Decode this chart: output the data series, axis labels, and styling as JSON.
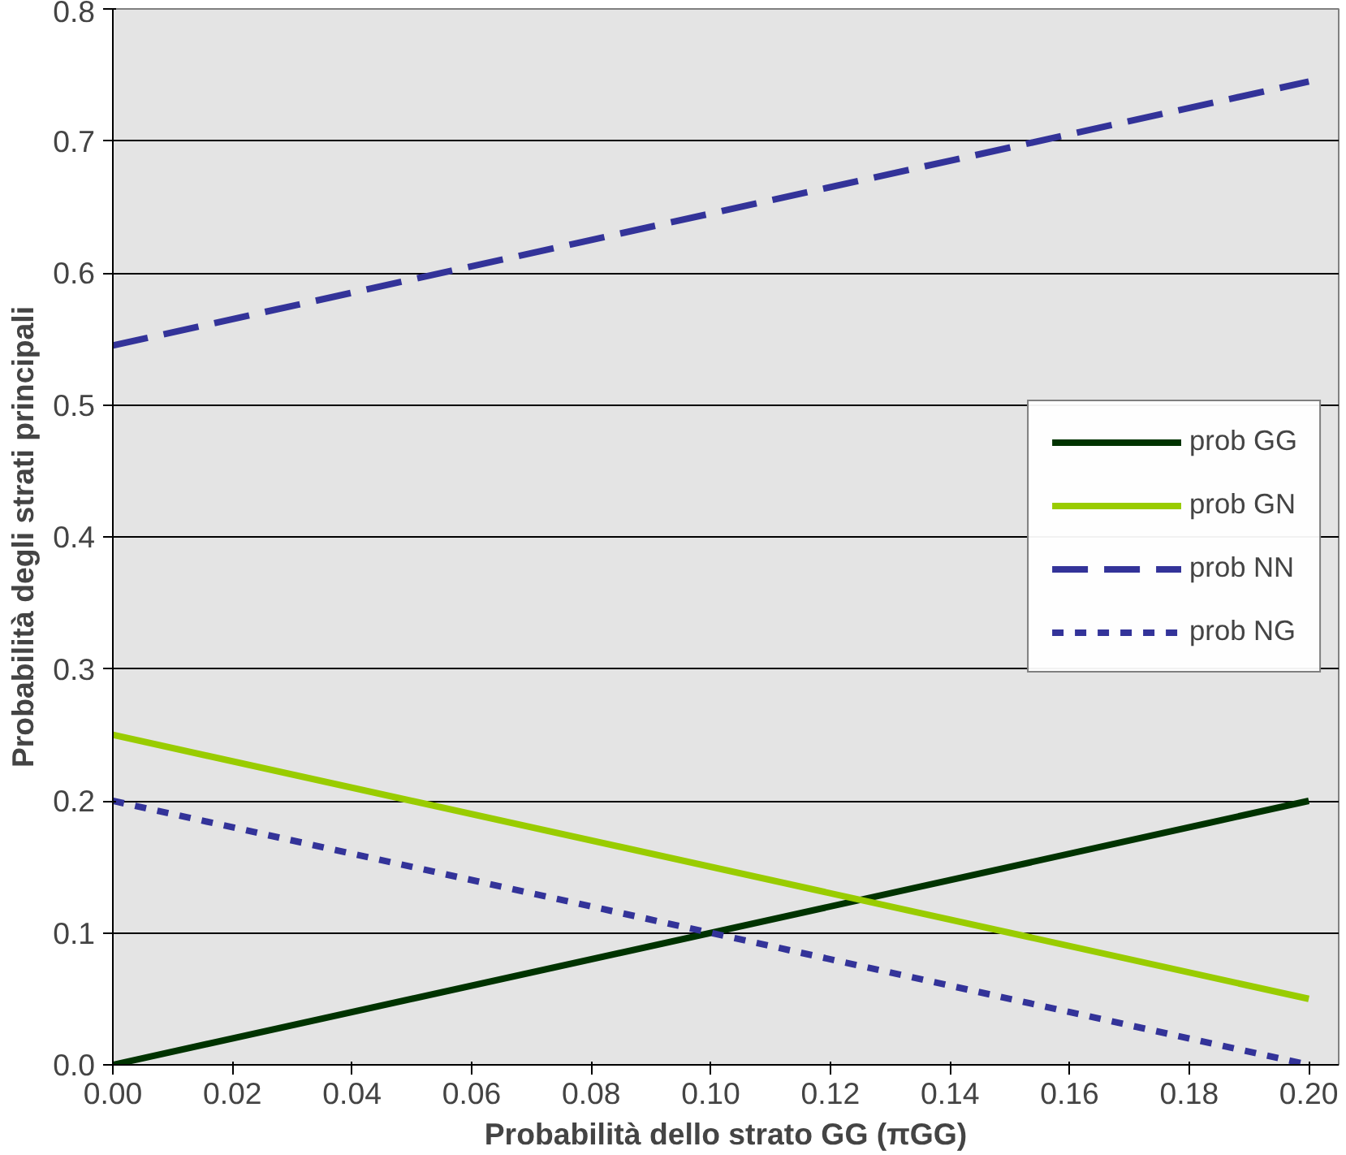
{
  "chart_data": {
    "type": "line",
    "xlabel": "Probabilità dello strato GG (πGG)",
    "ylabel": "Probabilità degli strati principali",
    "x": [
      0.0,
      0.2
    ],
    "series": [
      {
        "name": "prob GG",
        "color": "#003300",
        "values": [
          0.0,
          0.2
        ],
        "line_style": "solid"
      },
      {
        "name": "prob GN",
        "color": "#99cc00",
        "values": [
          0.25,
          0.05
        ],
        "line_style": "solid"
      },
      {
        "name": "prob NN",
        "color": "#333399",
        "values": [
          0.545,
          0.745
        ],
        "line_style": "dashed"
      },
      {
        "name": "prob NG",
        "color": "#333399",
        "values": [
          0.2,
          0.0
        ],
        "line_style": "dotted"
      }
    ],
    "xlim": [
      0.0,
      0.205
    ],
    "ylim": [
      0.0,
      0.8
    ],
    "xticks": [
      {
        "value": 0,
        "label": "0.00"
      },
      {
        "value": 0.02,
        "label": "0.02"
      },
      {
        "value": 0.04,
        "label": "0.04"
      },
      {
        "value": 0.06,
        "label": "0.06"
      },
      {
        "value": 0.08,
        "label": "0.08"
      },
      {
        "value": 0.1,
        "label": "0.10"
      },
      {
        "value": 0.12,
        "label": "0.12"
      },
      {
        "value": 0.14,
        "label": "0.14"
      },
      {
        "value": 0.16,
        "label": "0.16"
      },
      {
        "value": 0.18,
        "label": "0.18"
      },
      {
        "value": 0.2,
        "label": "0.20"
      }
    ],
    "yticks": [
      {
        "value": 0,
        "label": "0.0"
      },
      0.1,
      0.2,
      0.3,
      0.4,
      0.5,
      0.6,
      0.7,
      0.8
    ],
    "grid": "y",
    "legend": "right",
    "marker": "none"
  }
}
